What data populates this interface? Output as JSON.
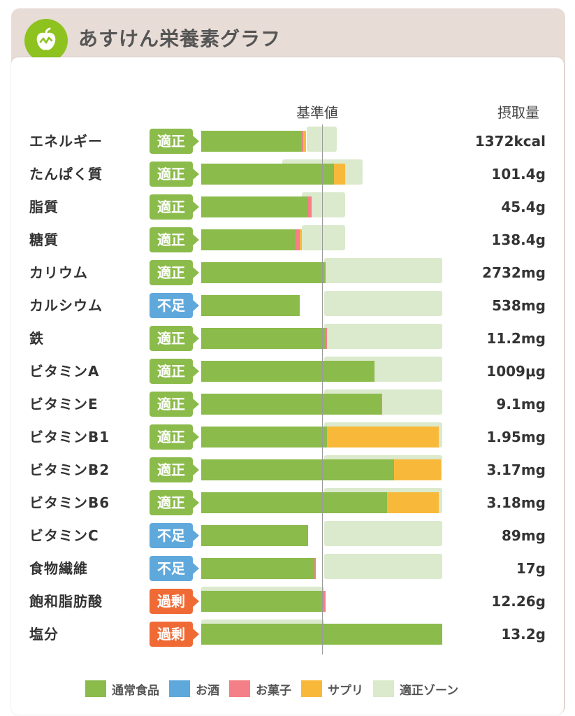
{
  "header": {
    "title": "あすけん栄養素グラフ",
    "logo_icon": "apple-chart-icon"
  },
  "columns": {
    "reference": "基準値",
    "intake": "摂取量"
  },
  "colors": {
    "food": "#8bbb4a",
    "alcohol": "#5fa8dc",
    "snack": "#f47f86",
    "supplement": "#f8b93a",
    "zone": "#dbe9cc",
    "status_ok": "#8bbb4a",
    "status_low": "#5fa8dc",
    "status_high": "#f06a35"
  },
  "status_labels": {
    "ok": "適正",
    "low": "不足",
    "high": "過剰"
  },
  "chart_data": {
    "type": "bar",
    "x_unit": "% of reference value (基準値 = 100)",
    "reference_value": 100,
    "categories": [
      "エネルギー",
      "たんぱく質",
      "脂質",
      "糖質",
      "カリウム",
      "カルシウム",
      "鉄",
      "ビタミンA",
      "ビタミンE",
      "ビタミンB1",
      "ビタミンB2",
      "ビタミンB6",
      "ビタミンC",
      "食物繊維",
      "飽和脂肪酸",
      "塩分"
    ],
    "status": [
      "ok",
      "ok",
      "ok",
      "ok",
      "ok",
      "low",
      "ok",
      "ok",
      "ok",
      "ok",
      "ok",
      "ok",
      "low",
      "low",
      "high",
      "high"
    ],
    "intake_labels": [
      "1372kcal",
      "101.4g",
      "45.4g",
      "138.4g",
      "2732mg",
      "538mg",
      "11.2mg",
      "1009μg",
      "9.1mg",
      "1.95mg",
      "3.17mg",
      "3.18mg",
      "89mg",
      "17g",
      "12.26g",
      "13.2g"
    ],
    "series": [
      {
        "name": "通常食品",
        "key": "food",
        "values": [
          81,
          108,
          87,
          76,
          101,
          80,
          101,
          141,
          146,
          102,
          157,
          151,
          87,
          92,
          99,
          196
        ]
      },
      {
        "name": "お酒",
        "key": "alcohol",
        "values": [
          0,
          0,
          0,
          0,
          0,
          0,
          0,
          0,
          0,
          0,
          0,
          0,
          0,
          0,
          0,
          0
        ]
      },
      {
        "name": "お菓子",
        "key": "snack",
        "values": [
          2,
          0,
          3,
          4,
          0,
          0,
          1,
          0,
          1,
          0,
          0,
          0,
          0,
          1,
          2,
          0
        ]
      },
      {
        "name": "サプリ",
        "key": "supplement",
        "values": [
          2,
          9,
          0,
          2,
          0,
          0,
          0,
          0,
          0,
          91,
          38,
          42,
          0,
          0,
          0,
          0
        ]
      }
    ],
    "zone": [
      [
        86,
        110
      ],
      [
        66,
        131
      ],
      [
        82,
        117
      ],
      [
        82,
        117
      ],
      [
        100,
        196
      ],
      [
        100,
        196
      ],
      [
        100,
        196
      ],
      [
        100,
        196
      ],
      [
        100,
        196
      ],
      [
        100,
        196
      ],
      [
        100,
        196
      ],
      [
        100,
        196
      ],
      [
        100,
        196
      ],
      [
        100,
        196
      ],
      [
        0,
        100
      ],
      [
        0,
        100
      ]
    ],
    "legend": [
      "通常食品",
      "お酒",
      "お菓子",
      "サプリ",
      "適正ゾーン"
    ],
    "legend_position": "bottom"
  }
}
